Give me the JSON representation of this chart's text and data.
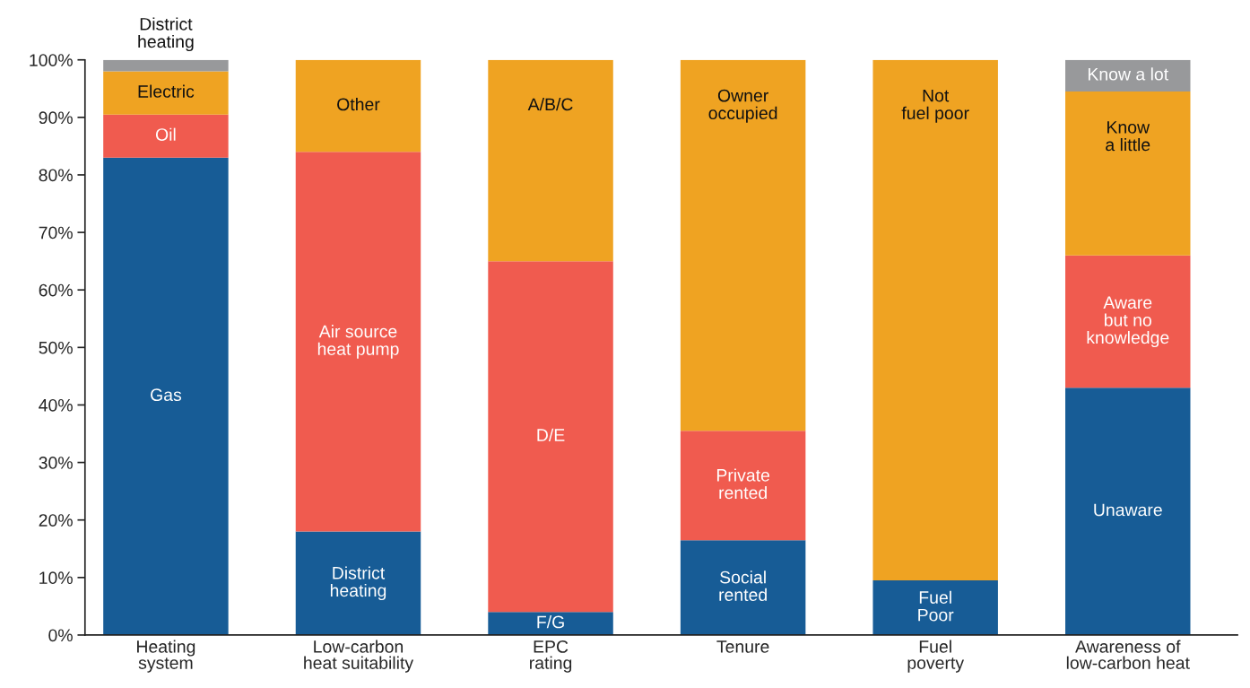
{
  "chart_data": {
    "type": "bar",
    "stacked": true,
    "categories": [
      "Heating\nsystem",
      "Low-carbon\nheat suitability",
      "EPC\nrating",
      "Tenure",
      "Fuel\npoverty",
      "Awareness of\nlow-carbon heat"
    ],
    "series": [
      {
        "color": "#175c96",
        "values": [
          83,
          18,
          4,
          16.5,
          9.5,
          43
        ],
        "value_labels": [
          "Gas",
          "District\nheating",
          "F/G",
          "Social\nrented",
          "Fuel\nPoor",
          "Unaware"
        ]
      },
      {
        "color": "#f05b4f",
        "values": [
          7.5,
          66,
          61,
          19,
          null,
          23
        ],
        "value_labels": [
          "Oil",
          "Air source\nheat pump",
          "D/E",
          "Private\nrented",
          null,
          "Aware\nbut no\nknowledge"
        ]
      },
      {
        "color": "#efa322",
        "values": [
          7.5,
          16,
          35,
          64.5,
          90.5,
          28.5
        ],
        "value_labels": [
          "Electric",
          "Other",
          "A/B/C",
          "Owner\noccupied",
          "Not\nfuel poor",
          "Know\na little"
        ]
      },
      {
        "color": "#98999b",
        "values": [
          2,
          null,
          null,
          null,
          null,
          5.5
        ],
        "value_labels": [
          "District\nheating",
          null,
          null,
          null,
          null,
          "Know a lot"
        ]
      }
    ],
    "ylim": [
      0,
      100
    ],
    "yticks": [
      {
        "value": 0,
        "label": "0%"
      },
      {
        "value": 10,
        "label": "10%"
      },
      {
        "value": 20,
        "label": "20%"
      },
      {
        "value": 30,
        "label": "30%"
      },
      {
        "value": 40,
        "label": "40%"
      },
      {
        "value": 50,
        "label": "50%"
      },
      {
        "value": 60,
        "label": "60%"
      },
      {
        "value": 70,
        "label": "70%"
      },
      {
        "value": 80,
        "label": "80%"
      },
      {
        "value": 90,
        "label": "90%"
      },
      {
        "value": 100,
        "label": "100%"
      }
    ],
    "grid": false,
    "legend": false
  }
}
